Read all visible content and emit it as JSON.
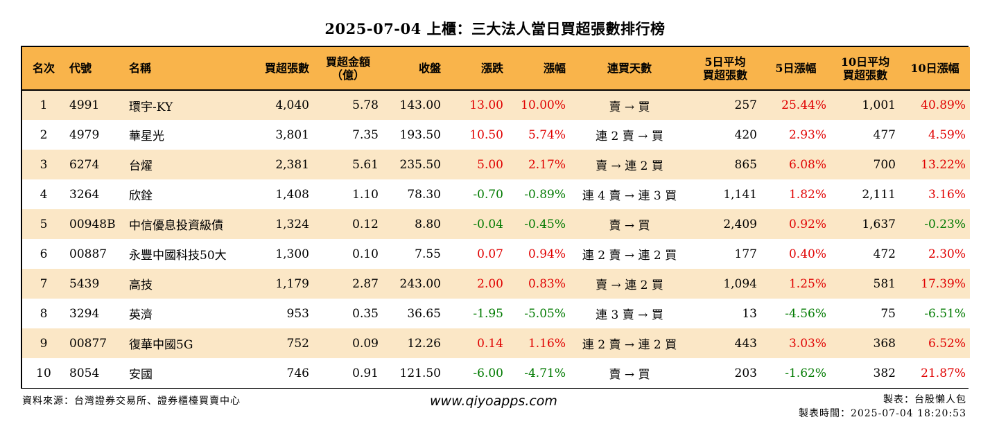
{
  "title": "2025-07-04 上櫃：三大法人當日買超張數排行榜",
  "columns": [
    {
      "label": "名次",
      "line2": ""
    },
    {
      "label": "代號",
      "line2": ""
    },
    {
      "label": "名稱",
      "line2": ""
    },
    {
      "label": "買超張數",
      "line2": ""
    },
    {
      "label": "買超金額",
      "line2": "（億）"
    },
    {
      "label": "收盤",
      "line2": ""
    },
    {
      "label": "漲跌",
      "line2": ""
    },
    {
      "label": "漲幅",
      "line2": ""
    },
    {
      "label": "連買天數",
      "line2": ""
    },
    {
      "label": "5日平均",
      "line2": "買超張數"
    },
    {
      "label": "5日漲幅",
      "line2": ""
    },
    {
      "label": "10日平均",
      "line2": "買超張數"
    },
    {
      "label": "10日漲幅",
      "line2": ""
    }
  ],
  "rows": [
    {
      "rank": "1",
      "code": "4991",
      "name": "環宇-KY",
      "net_buy": "4,040",
      "amount": "5.78",
      "close": "143.00",
      "change": "13.00",
      "pct": "10.00%",
      "streak": "賣 → 買",
      "avg5": "257",
      "pct5": "25.44%",
      "avg10": "1,001",
      "pct10": "40.89%"
    },
    {
      "rank": "2",
      "code": "4979",
      "name": "華星光",
      "net_buy": "3,801",
      "amount": "7.35",
      "close": "193.50",
      "change": "10.50",
      "pct": "5.74%",
      "streak": "連 2 賣 → 買",
      "avg5": "420",
      "pct5": "2.93%",
      "avg10": "477",
      "pct10": "4.59%"
    },
    {
      "rank": "3",
      "code": "6274",
      "name": "台燿",
      "net_buy": "2,381",
      "amount": "5.61",
      "close": "235.50",
      "change": "5.00",
      "pct": "2.17%",
      "streak": "賣 → 連 2 買",
      "avg5": "865",
      "pct5": "6.08%",
      "avg10": "700",
      "pct10": "13.22%"
    },
    {
      "rank": "4",
      "code": "3264",
      "name": "欣銓",
      "net_buy": "1,408",
      "amount": "1.10",
      "close": "78.30",
      "change": "-0.70",
      "pct": "-0.89%",
      "streak": "連 4 賣 → 連 3 買",
      "avg5": "1,141",
      "pct5": "1.82%",
      "avg10": "2,111",
      "pct10": "3.16%"
    },
    {
      "rank": "5",
      "code": "00948B",
      "name": "中信優息投資級債",
      "net_buy": "1,324",
      "amount": "0.12",
      "close": "8.80",
      "change": "-0.04",
      "pct": "-0.45%",
      "streak": "賣 → 買",
      "avg5": "2,409",
      "pct5": "0.92%",
      "avg10": "1,637",
      "pct10": "-0.23%"
    },
    {
      "rank": "6",
      "code": "00887",
      "name": "永豐中國科技50大",
      "net_buy": "1,300",
      "amount": "0.10",
      "close": "7.55",
      "change": "0.07",
      "pct": "0.94%",
      "streak": "連 2 賣 → 連 2 買",
      "avg5": "177",
      "pct5": "0.40%",
      "avg10": "472",
      "pct10": "2.30%"
    },
    {
      "rank": "7",
      "code": "5439",
      "name": "高技",
      "net_buy": "1,179",
      "amount": "2.87",
      "close": "243.00",
      "change": "2.00",
      "pct": "0.83%",
      "streak": "賣 → 連 2 買",
      "avg5": "1,094",
      "pct5": "1.25%",
      "avg10": "581",
      "pct10": "17.39%"
    },
    {
      "rank": "8",
      "code": "3294",
      "name": "英濟",
      "net_buy": "953",
      "amount": "0.35",
      "close": "36.65",
      "change": "-1.95",
      "pct": "-5.05%",
      "streak": "連 3 賣 → 買",
      "avg5": "13",
      "pct5": "-4.56%",
      "avg10": "75",
      "pct10": "-6.51%"
    },
    {
      "rank": "9",
      "code": "00877",
      "name": "復華中國5G",
      "net_buy": "752",
      "amount": "0.09",
      "close": "12.26",
      "change": "0.14",
      "pct": "1.16%",
      "streak": "連 2 賣 → 連 2 買",
      "avg5": "443",
      "pct5": "3.03%",
      "avg10": "368",
      "pct10": "6.52%"
    },
    {
      "rank": "10",
      "code": "8054",
      "name": "安國",
      "net_buy": "746",
      "amount": "0.91",
      "close": "121.50",
      "change": "-6.00",
      "pct": "-4.71%",
      "streak": "賣 → 買",
      "avg5": "203",
      "pct5": "-1.62%",
      "avg10": "382",
      "pct10": "21.87%"
    }
  ],
  "footer": {
    "source": "資料來源：台灣證券交易所、證券櫃檯買賣中心",
    "website": "www.qiyoapps.com",
    "maker": "製表：台股懶人包",
    "made_time": "製表時間：2025-07-04 18:20:53"
  },
  "colors": {
    "header_bg": "#f9b44b",
    "stripe_bg": "#fbe7c6",
    "positive": "#e00000",
    "negative": "#007a00"
  }
}
